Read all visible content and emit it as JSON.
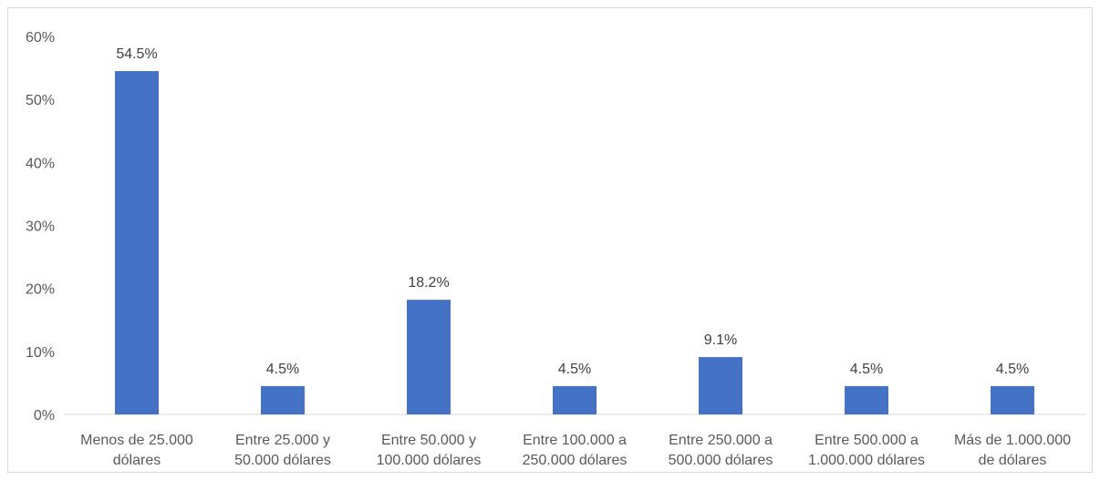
{
  "chart_data": {
    "type": "bar",
    "title": "",
    "xlabel": "",
    "ylabel": "",
    "categories": [
      [
        "Menos de 25.000",
        "dólares"
      ],
      [
        "Entre 25.000 y",
        "50.000 dólares"
      ],
      [
        "Entre 50.000 y",
        "100.000 dólares"
      ],
      [
        "Entre 100.000 a",
        "250.000 dólares"
      ],
      [
        "Entre 250.000 a",
        "500.000 dólares"
      ],
      [
        "Entre 500.000 a",
        "1.000.000 dólares"
      ],
      [
        "Más de 1.000.000",
        "de dólares"
      ]
    ],
    "values": [
      54.5,
      4.5,
      18.2,
      4.5,
      9.1,
      4.5,
      4.5
    ],
    "data_labels": [
      "54.5%",
      "4.5%",
      "18.2%",
      "4.5%",
      "9.1%",
      "4.5%",
      "4.5%"
    ],
    "y_ticks": [
      0,
      10,
      20,
      30,
      40,
      50,
      60
    ],
    "y_tick_labels": [
      "0%",
      "10%",
      "20%",
      "30%",
      "40%",
      "50%",
      "60%"
    ],
    "ylim": [
      0,
      60
    ],
    "grid": false,
    "legend": "none",
    "bar_color": "#4472c4",
    "axis_color": "#d9d9d9"
  }
}
